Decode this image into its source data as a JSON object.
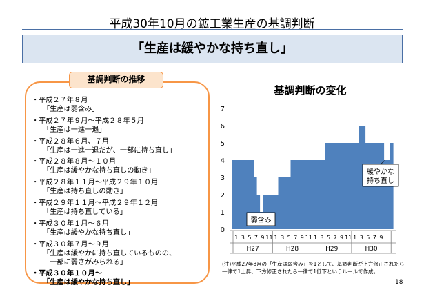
{
  "slide": {
    "title": "平成30年10月の鉱工業生産の基調判断",
    "headline": "「生産は緩やかな持ち直し」",
    "page_number": "18"
  },
  "history": {
    "header": "基調判断の推移",
    "items": [
      {
        "period": "・平成２７年８月",
        "desc": "「生産は弱含み」",
        "bold": false
      },
      {
        "period": "・平成２７年９月～平成２８年５月",
        "desc": "「生産は一進一退」",
        "bold": false
      },
      {
        "period": "・平成２８年６月、７月",
        "desc": "「生産は一進一退だが、一部に持ち直し」",
        "bold": false
      },
      {
        "period": "・平成２８年８月～１０月",
        "desc": "「生産は緩やかな持ち直しの動き」",
        "bold": false
      },
      {
        "period": "・平成２８年１１月～平成２９年１０月",
        "desc": "「生産は持ち直しの動き」",
        "bold": false
      },
      {
        "period": "・平成２９年１１月～平成２９年１２月",
        "desc": "「生産は持ち直している」",
        "bold": false
      },
      {
        "period": "・平成３０年１月～６月",
        "desc": "「生産は緩やかな持ち直し」",
        "bold": false
      },
      {
        "period": "・平成３０年７月～９月",
        "desc": "「生産は緩やかに持ち直しているものの、\n　一部に弱さがみられる」",
        "bold": false
      },
      {
        "period": "・平成３０年１０月～",
        "desc": "「生産は緩やかな持ち直し」",
        "bold": true
      }
    ]
  },
  "chart_data": {
    "type": "bar",
    "title": "基調判断の変化",
    "ylim": [
      0,
      7
    ],
    "yticks": [
      "0",
      "1",
      "2",
      "3",
      "4",
      "5",
      "6",
      "7"
    ],
    "month_labels": [
      "1",
      "3",
      "5",
      "7",
      "9",
      "11",
      "1",
      "3",
      "5",
      "7",
      "9",
      "11",
      "1",
      "3",
      "5",
      "7",
      "9",
      "11",
      "1",
      "3",
      "5",
      "7",
      "9"
    ],
    "year_labels": [
      "H27",
      "H28",
      "H29",
      "H30"
    ],
    "bar_color": "#4f81bd",
    "values": [
      4,
      4,
      4,
      4,
      4,
      4,
      4,
      3,
      2,
      1,
      2,
      2,
      2,
      2,
      2,
      3,
      3,
      3,
      3,
      4,
      4,
      4,
      4,
      4,
      4,
      4,
      4,
      4,
      4,
      4,
      5,
      5,
      5,
      5,
      5,
      5,
      5,
      5,
      5,
      5,
      5,
      6,
      6,
      5,
      5,
      5,
      5,
      5,
      5,
      4,
      4,
      5
    ],
    "annotations": [
      {
        "text": "弱含み",
        "x_index": 9,
        "y": 1
      },
      {
        "text": "緩やかな\n持ち直し",
        "x_index": 49,
        "y": 4
      }
    ],
    "grid": false,
    "xlabel": "",
    "ylabel": ""
  },
  "footnote": "(注)平成27年8月の「生産は弱含み」を1として、基調判断が上方修正されたら一律で1上昇、下方修正されたら一律で1低下というルールで作成。"
}
